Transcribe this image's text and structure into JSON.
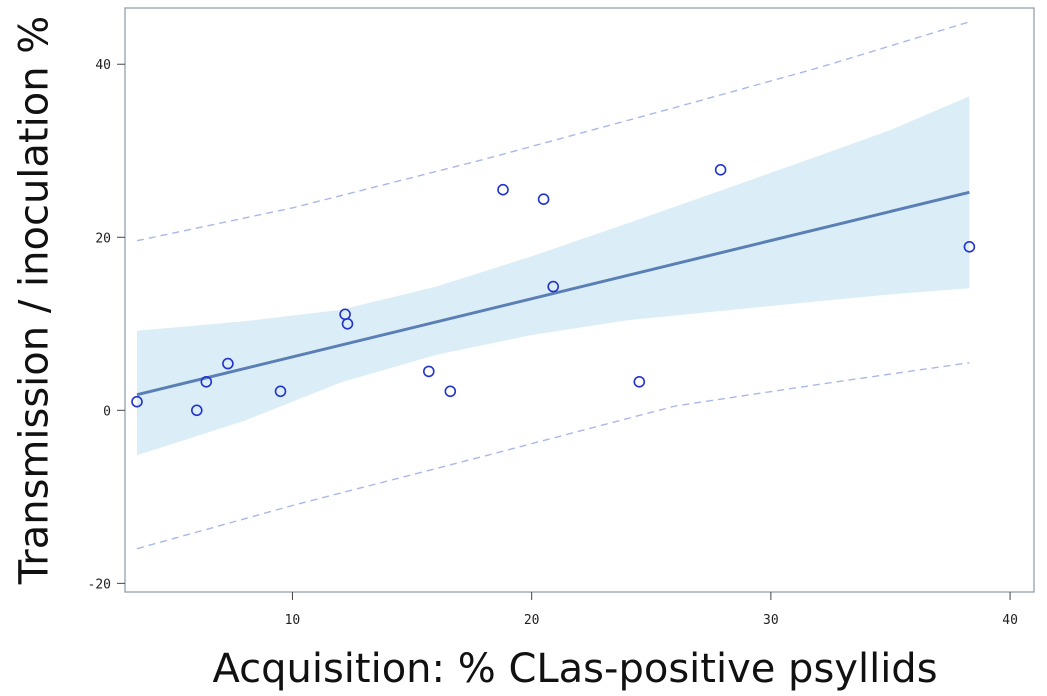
{
  "chart_data": {
    "type": "scatter",
    "xlabel": "Acquisition:  % CLas-positive psyllids",
    "ylabel": "Transmission / inoculation %",
    "xlim": [
      3,
      41
    ],
    "ylim": [
      -21,
      46.5
    ],
    "xticks": [
      "10",
      "20",
      "30",
      "40"
    ],
    "xtick_values": [
      10,
      20,
      30,
      40
    ],
    "yticks": [
      "-20",
      "0",
      "20",
      "40"
    ],
    "ytick_values": [
      -20,
      0,
      20,
      40
    ],
    "grid": false,
    "points": [
      {
        "x": 3.5,
        "y": 1.0
      },
      {
        "x": 6.0,
        "y": 0.0
      },
      {
        "x": 6.4,
        "y": 3.3
      },
      {
        "x": 7.3,
        "y": 5.4
      },
      {
        "x": 9.5,
        "y": 2.2
      },
      {
        "x": 12.2,
        "y": 11.1
      },
      {
        "x": 12.3,
        "y": 10.0
      },
      {
        "x": 15.7,
        "y": 4.5
      },
      {
        "x": 16.6,
        "y": 2.2
      },
      {
        "x": 18.8,
        "y": 25.5
      },
      {
        "x": 20.5,
        "y": 24.4
      },
      {
        "x": 20.9,
        "y": 14.3
      },
      {
        "x": 24.5,
        "y": 3.3
      },
      {
        "x": 27.9,
        "y": 27.8
      },
      {
        "x": 38.3,
        "y": 18.9
      }
    ],
    "fit_line": [
      {
        "x": 3.5,
        "y": 1.8
      },
      {
        "x": 38.3,
        "y": 25.2
      }
    ],
    "confidence_band_upper": [
      {
        "x": 3.5,
        "y": 9.2
      },
      {
        "x": 8,
        "y": 10.3
      },
      {
        "x": 12,
        "y": 11.6
      },
      {
        "x": 16,
        "y": 14.3
      },
      {
        "x": 20,
        "y": 17.8
      },
      {
        "x": 24,
        "y": 21.6
      },
      {
        "x": 28,
        "y": 25.5
      },
      {
        "x": 32,
        "y": 29.4
      },
      {
        "x": 35,
        "y": 32.4
      },
      {
        "x": 38.3,
        "y": 36.3
      }
    ],
    "confidence_band_lower": [
      {
        "x": 3.5,
        "y": -5.2
      },
      {
        "x": 8,
        "y": -1.2
      },
      {
        "x": 12,
        "y": 3.2
      },
      {
        "x": 16,
        "y": 6.4
      },
      {
        "x": 20,
        "y": 8.7
      },
      {
        "x": 24,
        "y": 10.4
      },
      {
        "x": 28,
        "y": 11.5
      },
      {
        "x": 32,
        "y": 12.6
      },
      {
        "x": 35,
        "y": 13.4
      },
      {
        "x": 38.3,
        "y": 14.1
      }
    ],
    "prediction_upper": [
      {
        "x": 3.5,
        "y": 19.6
      },
      {
        "x": 10,
        "y": 23.4
      },
      {
        "x": 18,
        "y": 29.0
      },
      {
        "x": 26,
        "y": 35.0
      },
      {
        "x": 32,
        "y": 39.6
      },
      {
        "x": 38.3,
        "y": 44.9
      }
    ],
    "prediction_lower": [
      {
        "x": 3.5,
        "y": -16.0
      },
      {
        "x": 10,
        "y": -11.0
      },
      {
        "x": 18,
        "y": -5.3
      },
      {
        "x": 26,
        "y": 0.5
      },
      {
        "x": 32,
        "y": 3.0
      },
      {
        "x": 38.3,
        "y": 5.5
      }
    ],
    "colors": {
      "band": "#dbeef8",
      "fit": "#5a7fb5",
      "points": "#2233cc",
      "prediction": "#aab8e8",
      "frame": "#8a9aa8"
    }
  }
}
